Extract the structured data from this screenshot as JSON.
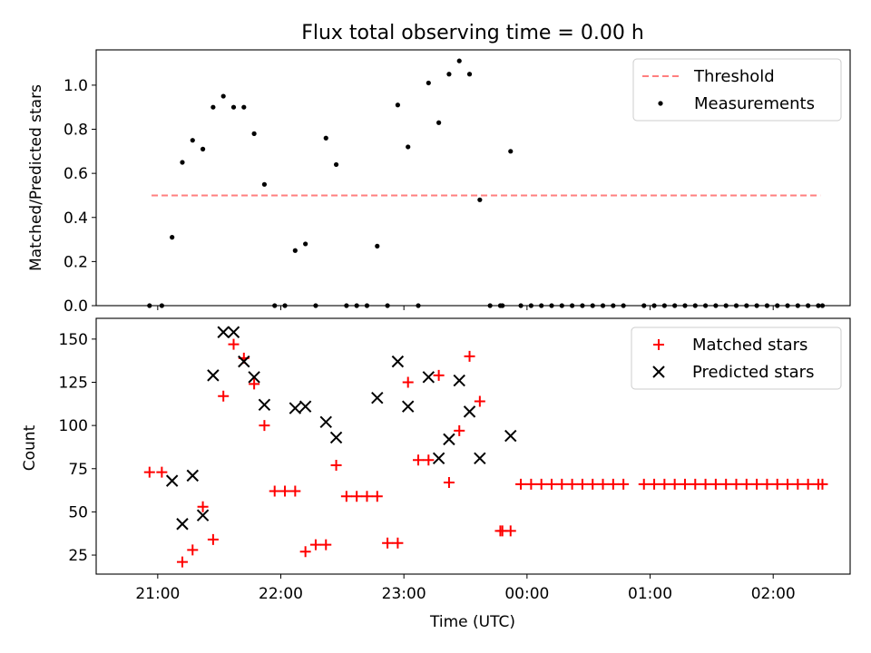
{
  "chart_data": [
    {
      "type": "scatter",
      "title": "Flux total observing time = 0.00 h",
      "ylabel": "Matched/Predicted stars",
      "xlabel": "",
      "ylim": [
        0,
        1.16
      ],
      "yticks": [
        0.0,
        0.2,
        0.4,
        0.6,
        0.8,
        1.0
      ],
      "ytick_labels": [
        "0.0",
        "0.2",
        "0.4",
        "0.6",
        "0.8",
        "1.0"
      ],
      "xticks_hours": [
        21,
        22,
        23,
        24,
        25,
        26
      ],
      "xtick_labels": [
        "",
        "",
        "",
        "",
        "",
        ""
      ],
      "legend_position": "upper right",
      "series": [
        {
          "name": "Threshold",
          "type": "line",
          "style": "dashed",
          "color": "#ff7f7f",
          "x": [
            "20:57",
            "02:23"
          ],
          "values": [
            0.5,
            0.5
          ]
        },
        {
          "name": "Measurements",
          "type": "scatter",
          "marker": "dot",
          "color": "#000000",
          "x": [
            "20:56",
            "21:02",
            "21:07",
            "21:12",
            "21:17",
            "21:22",
            "21:27",
            "21:32",
            "21:37",
            "21:42",
            "21:47",
            "21:52",
            "21:57",
            "22:02",
            "22:07",
            "22:12",
            "22:17",
            "22:22",
            "22:27",
            "22:32",
            "22:37",
            "22:42",
            "22:47",
            "22:52",
            "22:57",
            "23:02",
            "23:07",
            "23:12",
            "23:17",
            "23:22",
            "23:27",
            "23:32",
            "23:37",
            "23:42",
            "23:47",
            "23:48",
            "23:52",
            "23:57",
            "00:02",
            "00:07",
            "00:12",
            "00:17",
            "00:22",
            "00:27",
            "00:32",
            "00:37",
            "00:42",
            "00:47",
            "00:57",
            "01:02",
            "01:07",
            "01:12",
            "01:17",
            "01:22",
            "01:27",
            "01:32",
            "01:37",
            "01:42",
            "01:47",
            "01:52",
            "01:57",
            "02:02",
            "02:07",
            "02:12",
            "02:17",
            "02:22",
            "02:24"
          ],
          "values": [
            0,
            0,
            0.31,
            0.65,
            0.75,
            0.71,
            0.9,
            0.95,
            0.9,
            0.9,
            0.78,
            0.55,
            0,
            0,
            0.25,
            0.28,
            0,
            0.76,
            0.64,
            0,
            0,
            0,
            0.27,
            0,
            0.91,
            0.72,
            0,
            1.01,
            0.83,
            1.05,
            1.11,
            1.05,
            0.48,
            0,
            0,
            0,
            0.7,
            0,
            0,
            0,
            0,
            0,
            0,
            0,
            0,
            0,
            0,
            0,
            0,
            0,
            0,
            0,
            0,
            0,
            0,
            0,
            0,
            0,
            0,
            0,
            0,
            0,
            0,
            0,
            0,
            0,
            0
          ]
        }
      ]
    },
    {
      "type": "scatter",
      "title": "",
      "ylabel": "Count",
      "xlabel": "Time (UTC)",
      "ylim": [
        14,
        162
      ],
      "yticks": [
        25,
        50,
        75,
        100,
        125,
        150
      ],
      "ytick_labels": [
        "25",
        "50",
        "75",
        "100",
        "125",
        "150"
      ],
      "xticks_hours": [
        21,
        22,
        23,
        24,
        25,
        26
      ],
      "xtick_labels": [
        "21:00",
        "22:00",
        "23:00",
        "00:00",
        "01:00",
        "02:00"
      ],
      "legend_position": "upper right",
      "series": [
        {
          "name": "Matched stars",
          "type": "scatter",
          "marker": "plus",
          "color": "#ff0000",
          "x": [
            "20:56",
            "21:02",
            "21:12",
            "21:17",
            "21:22",
            "21:27",
            "21:32",
            "21:37",
            "21:42",
            "21:47",
            "21:52",
            "21:57",
            "22:02",
            "22:07",
            "22:12",
            "22:17",
            "22:22",
            "22:27",
            "22:32",
            "22:37",
            "22:42",
            "22:47",
            "22:52",
            "22:57",
            "23:02",
            "23:07",
            "23:12",
            "23:17",
            "23:22",
            "23:27",
            "23:32",
            "23:37",
            "23:47",
            "23:48",
            "23:52",
            "23:57",
            "00:02",
            "00:07",
            "00:12",
            "00:17",
            "00:22",
            "00:27",
            "00:32",
            "00:37",
            "00:42",
            "00:47",
            "00:57",
            "01:02",
            "01:07",
            "01:12",
            "01:17",
            "01:22",
            "01:27",
            "01:32",
            "01:37",
            "01:42",
            "01:47",
            "01:52",
            "01:57",
            "02:02",
            "02:07",
            "02:12",
            "02:17",
            "02:22",
            "02:24"
          ],
          "values": [
            73,
            73,
            21,
            28,
            53,
            34,
            117,
            147,
            139,
            124,
            100,
            62,
            62,
            62,
            27,
            31,
            31,
            77,
            59,
            59,
            59,
            59,
            32,
            32,
            125,
            80,
            80,
            129,
            67,
            97,
            140,
            114,
            39,
            39,
            39,
            66,
            66,
            66,
            66,
            66,
            66,
            66,
            66,
            66,
            66,
            66,
            66,
            66,
            66,
            66,
            66,
            66,
            66,
            66,
            66,
            66,
            66,
            66,
            66,
            66,
            66,
            66,
            66,
            66,
            66
          ]
        },
        {
          "name": "Predicted stars",
          "type": "scatter",
          "marker": "x",
          "color": "#000000",
          "x": [
            "21:07",
            "21:12",
            "21:17",
            "21:22",
            "21:27",
            "21:32",
            "21:37",
            "21:42",
            "21:47",
            "21:52",
            "22:07",
            "22:12",
            "22:22",
            "22:27",
            "22:47",
            "22:57",
            "23:02",
            "23:12",
            "23:17",
            "23:22",
            "23:27",
            "23:32",
            "23:37",
            "23:52"
          ],
          "values": [
            68,
            43,
            71,
            48,
            129,
            154,
            154,
            137,
            128,
            112,
            110,
            111,
            102,
            93,
            116,
            137,
            111,
            128,
            81,
            92,
            126,
            108,
            81,
            94
          ]
        }
      ]
    }
  ]
}
